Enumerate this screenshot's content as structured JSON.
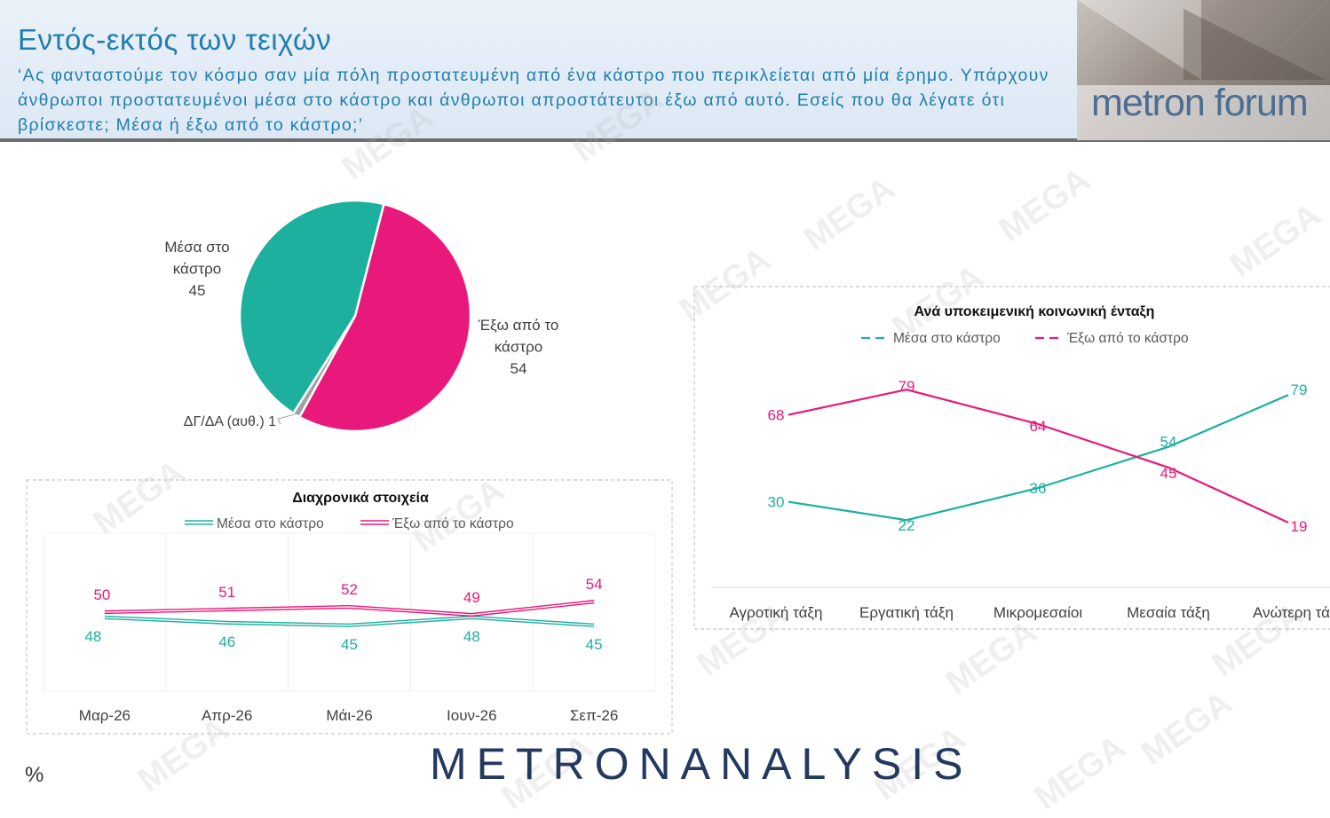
{
  "header": {
    "title": "Εντός-εκτός των τειχών",
    "question": "‘Ας φανταστούμε τον κόσμο σαν μία πόλη προστατευμένη από ένα κάστρο που περικλείεται από μία έρημο. Υπάρχουν άνθρωποι προστατευμένοι μέσα στο κάστρο και άνθρωποι απροστάτευτοι έξω από αυτό. Εσείς που θα λέγατε ότι βρίσκεστε; Μέσα ή έξω από το κάστρο;’",
    "logo_text": "metron forum"
  },
  "watermark": "MEGA",
  "footer": {
    "brand": "METRONANALYSIS",
    "unit": "%"
  },
  "colors": {
    "inside": "#1db09e",
    "outside": "#e8197b",
    "dk": "#a0a0a0",
    "title": "#1f7fae"
  },
  "chart_data": [
    {
      "type": "pie",
      "slices": [
        {
          "label": "Μέσα στο κάστρο",
          "value": 45,
          "color": "#1db09e",
          "label_lines": [
            "Μέσα στο",
            "κάστρο",
            "45"
          ]
        },
        {
          "label": "Έξω από το κάστρο",
          "value": 54,
          "color": "#e8197b",
          "label_lines": [
            "Έξω από το",
            "κάστρο",
            "54"
          ]
        },
        {
          "label": "ΔΓ/ΔΑ (αυθ.)",
          "value": 1,
          "color": "#a0a0a0",
          "label_lines": [
            "ΔΓ/ΔΑ (αυθ.) 1"
          ]
        }
      ]
    },
    {
      "type": "line",
      "title": "Διαχρονικά στοιχεία",
      "categories": [
        "Μαρ-26",
        "Απρ-26",
        "Μάι-26",
        "Ιουν-26",
        "Σεπ-26"
      ],
      "series": [
        {
          "name": "Μέσα στο κάστρο",
          "values": [
            48,
            46,
            45,
            48,
            45
          ],
          "color": "#1db09e"
        },
        {
          "name": "Έξω από το κάστρο",
          "values": [
            50,
            51,
            52,
            49,
            54
          ],
          "color": "#e8197b"
        }
      ],
      "grid": true,
      "legend": "top"
    },
    {
      "type": "line",
      "title": "Ανά υποκειμενική κοινωνική ένταξη",
      "categories": [
        "Αγροτική τάξη",
        "Εργατική τάξη",
        "Μικρομεσαίοι",
        "Μεσαία τάξη",
        "Ανώτερη τάξη"
      ],
      "series": [
        {
          "name": "Μέσα στο κάστρο",
          "values": [
            30,
            22,
            36,
            54,
            79
          ],
          "color": "#1db09e"
        },
        {
          "name": "Έξω από το κάστρο",
          "values": [
            68,
            79,
            64,
            45,
            19
          ],
          "color": "#e8197b"
        }
      ],
      "grid": false,
      "legend": "top"
    }
  ]
}
